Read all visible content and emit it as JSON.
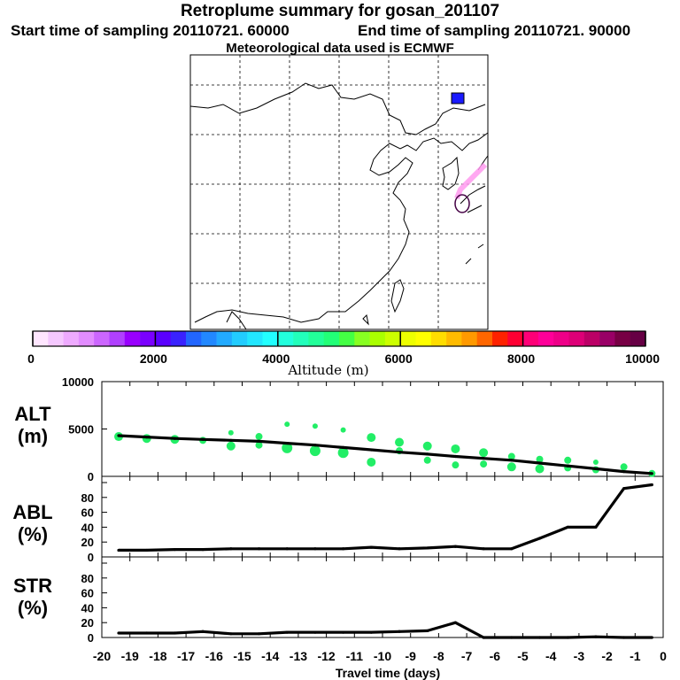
{
  "header": {
    "title": "Retroplume summary for gosan_201107",
    "start": "Start time of sampling 20110721. 60000",
    "end": "End time of sampling 20110721. 90000",
    "met": "Meteorological data used is ECMWF"
  },
  "colorbar": {
    "label": "Altitude (m)",
    "ticks": [
      "0",
      "2000",
      "4000",
      "6000",
      "8000",
      "10000"
    ],
    "colors": [
      "#ffe6ff",
      "#f5c8ff",
      "#eeaaff",
      "#e28cff",
      "#cc66ff",
      "#b040ff",
      "#9900ff",
      "#7a00ff",
      "#5a00ff",
      "#3a22ff",
      "#2266ff",
      "#2288ff",
      "#22aaff",
      "#22ccff",
      "#22e6ff",
      "#22ffff",
      "#22ffdd",
      "#22ffbb",
      "#22ff99",
      "#22ff77",
      "#44ff44",
      "#88ff22",
      "#aaff00",
      "#ccff00",
      "#eeff00",
      "#ffff00",
      "#ffdd00",
      "#ffbb00",
      "#ff9900",
      "#ff6600",
      "#ff2200",
      "#ff0033",
      "#ff0077",
      "#ff0099",
      "#ee0088",
      "#dd0077",
      "#bb0066",
      "#990066",
      "#770044",
      "#660044"
    ]
  },
  "panels": {
    "alt": {
      "label": "ALT",
      "unit": "(m)"
    },
    "abl": {
      "label": "ABL",
      "unit": "(%)"
    },
    "str": {
      "label": "STR",
      "unit": "(%)"
    }
  },
  "chart_data": [
    {
      "type": "line",
      "title": "ALT",
      "ylabel": "ALT (m)",
      "xlim": [
        -20,
        0
      ],
      "ylim": [
        0,
        10000
      ],
      "yticks": [
        "10000",
        "5000",
        "0"
      ],
      "x": [
        -19.4,
        -18.4,
        -17.4,
        -16.4,
        -15.4,
        -14.4,
        -13.4,
        -12.4,
        -11.4,
        -10.4,
        -9.4,
        -8.4,
        -7.4,
        -6.4,
        -5.4,
        -4.4,
        -3.4,
        -2.4,
        -1.4,
        -0.4
      ],
      "y": [
        4300,
        4150,
        4000,
        3900,
        3800,
        3700,
        3500,
        3300,
        3050,
        2800,
        2550,
        2350,
        2100,
        1900,
        1700,
        1400,
        1100,
        800,
        500,
        300
      ],
      "scatter": {
        "color": "#22ee66",
        "points": [
          [
            -19.4,
            4200,
            5
          ],
          [
            -18.4,
            4000,
            5
          ],
          [
            -17.4,
            3900,
            5
          ],
          [
            -16.4,
            3800,
            4
          ],
          [
            -15.4,
            4600,
            3
          ],
          [
            -15.4,
            3200,
            5
          ],
          [
            -14.4,
            4200,
            4
          ],
          [
            -14.4,
            3300,
            4
          ],
          [
            -13.4,
            5500,
            3
          ],
          [
            -13.4,
            3000,
            6
          ],
          [
            -12.4,
            5300,
            3
          ],
          [
            -12.4,
            2700,
            6
          ],
          [
            -11.4,
            4900,
            3
          ],
          [
            -11.4,
            2500,
            6
          ],
          [
            -10.4,
            4100,
            5
          ],
          [
            -10.4,
            1500,
            5
          ],
          [
            -9.4,
            3600,
            5
          ],
          [
            -9.4,
            2700,
            4
          ],
          [
            -8.4,
            3200,
            5
          ],
          [
            -8.4,
            1700,
            4
          ],
          [
            -7.4,
            2900,
            5
          ],
          [
            -7.4,
            1200,
            4
          ],
          [
            -6.4,
            2500,
            5
          ],
          [
            -6.4,
            1300,
            4
          ],
          [
            -5.4,
            2100,
            4
          ],
          [
            -5.4,
            1000,
            5
          ],
          [
            -4.4,
            1800,
            4
          ],
          [
            -4.4,
            800,
            5
          ],
          [
            -3.4,
            1700,
            4
          ],
          [
            -3.4,
            900,
            4
          ],
          [
            -2.4,
            1500,
            3
          ],
          [
            -2.4,
            700,
            4
          ],
          [
            -1.4,
            1000,
            4
          ],
          [
            -0.4,
            300,
            4
          ]
        ]
      }
    },
    {
      "type": "line",
      "title": "ABL",
      "ylabel": "ABL (%)",
      "xlim": [
        -20,
        0
      ],
      "ylim": [
        0,
        100
      ],
      "yticks": [
        "80",
        "60",
        "40",
        "20",
        "0"
      ],
      "x": [
        -19.4,
        -18.4,
        -17.4,
        -16.4,
        -15.4,
        -14.4,
        -13.4,
        -12.4,
        -11.4,
        -10.4,
        -9.4,
        -8.4,
        -7.4,
        -6.4,
        -5.4,
        -4.4,
        -3.4,
        -2.4,
        -1.4,
        -0.4
      ],
      "y": [
        9,
        9,
        10,
        10,
        11,
        11,
        11,
        11,
        11,
        13,
        11,
        12,
        14,
        11,
        11,
        25,
        40,
        40,
        92,
        97
      ]
    },
    {
      "type": "line",
      "title": "STR",
      "ylabel": "STR (%)",
      "xlim": [
        -20,
        0
      ],
      "ylim": [
        0,
        100
      ],
      "yticks": [
        "80",
        "60",
        "40",
        "20",
        "0"
      ],
      "x": [
        -19.4,
        -18.4,
        -17.4,
        -16.4,
        -15.4,
        -14.4,
        -13.4,
        -12.4,
        -11.4,
        -10.4,
        -9.4,
        -8.4,
        -7.4,
        -6.4,
        -5.4,
        -4.4,
        -3.4,
        -2.4,
        -1.4,
        -0.4
      ],
      "y": [
        6,
        6,
        6,
        8,
        5,
        5,
        7,
        7,
        7,
        7,
        8,
        9,
        20,
        0,
        0,
        0,
        0,
        1,
        0,
        0
      ],
      "xlabel": "Travel time (days)",
      "xticks": [
        "-20",
        "-19",
        "-18",
        "-17",
        "-16",
        "-15",
        "-14",
        "-13",
        "-12",
        "-11",
        "-10",
        "-9",
        "-8",
        "-7",
        "-6",
        "-5",
        "-4",
        "-3",
        "-2",
        "-1",
        "0"
      ]
    }
  ]
}
